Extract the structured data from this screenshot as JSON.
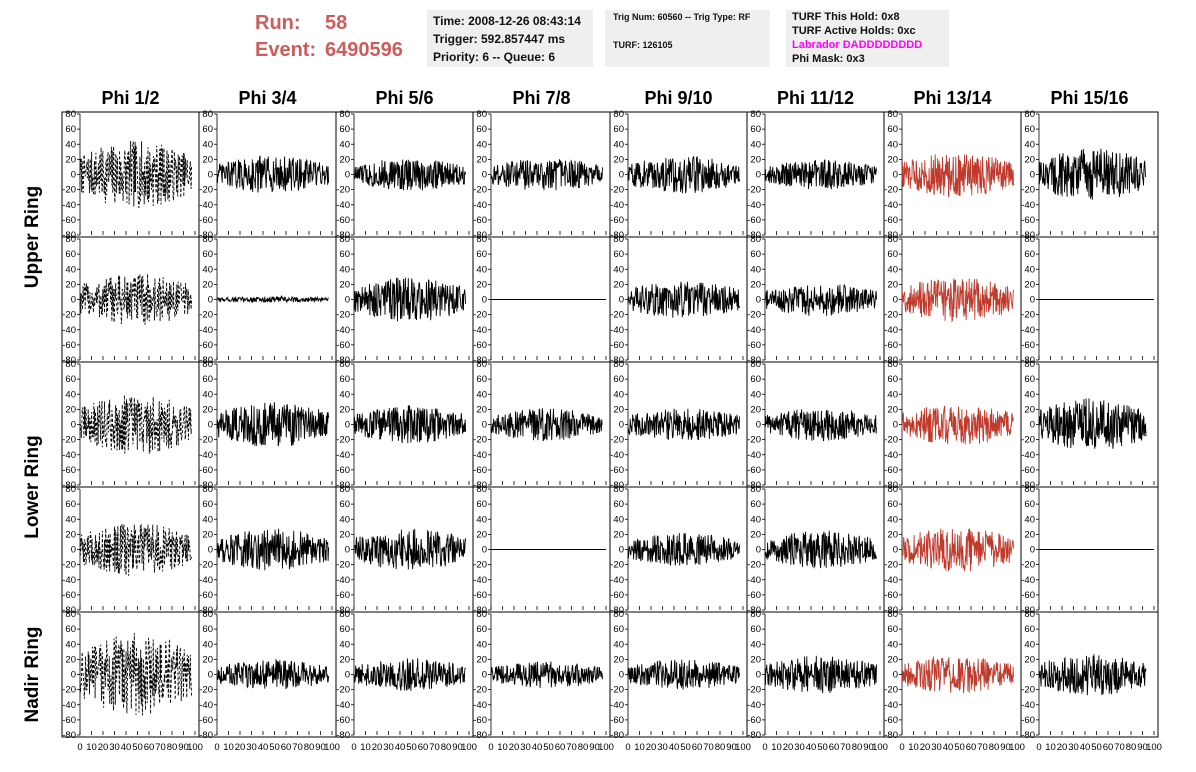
{
  "header": {
    "run_label": "Run:",
    "run_value": "58",
    "event_label": "Event:",
    "event_value": "6490596",
    "accent_color": "#cd5c5c"
  },
  "time_box": {
    "time": "Time: 2008-12-26 08:43:14",
    "trigger": "Trigger: 592.857447 ms",
    "priority": "Priority: 6 -- Queue: 6"
  },
  "trig_box": {
    "trig": "Trig Num: 60560 -- Trig Type: RF",
    "turf": "TURF: 126105"
  },
  "turf_box": {
    "this_hold": "TURF This Hold: 0x8",
    "active_holds": "TURF Active Holds: 0xc",
    "labrador": "Labrador DADDDDDDDD",
    "labrador_color": "#ff00ff",
    "phi_mask": "Phi Mask: 0x3"
  },
  "chart_data": {
    "type": "line",
    "columns": [
      "Phi 1/2",
      "Phi 3/4",
      "Phi 5/6",
      "Phi 7/8",
      "Phi 9/10",
      "Phi 11/12",
      "Phi 13/14",
      "Phi 15/16"
    ],
    "ring_labels": [
      {
        "label": "Upper Ring",
        "rows": [
          0,
          1
        ]
      },
      {
        "label": "Lower Ring",
        "rows": [
          2,
          3
        ]
      },
      {
        "label": "Nadir Ring",
        "rows": [
          4
        ]
      }
    ],
    "xlim": [
      0,
      100
    ],
    "ylim": [
      -80,
      80
    ],
    "x_ticks": [
      0,
      10,
      20,
      30,
      40,
      50,
      60,
      70,
      80,
      90,
      100
    ],
    "y_ticks": [
      -80,
      -60,
      -40,
      -20,
      0,
      20,
      40,
      60,
      80
    ],
    "trace_color": "#000000",
    "masked_color": "#c0392b",
    "masked_column": 6,
    "dashed_column": 0,
    "panels": [
      {
        "row": 0,
        "col": 0,
        "amp": 45,
        "flat": false
      },
      {
        "row": 0,
        "col": 1,
        "amp": 25,
        "flat": false
      },
      {
        "row": 0,
        "col": 2,
        "amp": 22,
        "flat": false
      },
      {
        "row": 0,
        "col": 3,
        "amp": 22,
        "flat": false
      },
      {
        "row": 0,
        "col": 4,
        "amp": 25,
        "flat": false
      },
      {
        "row": 0,
        "col": 5,
        "amp": 20,
        "flat": false
      },
      {
        "row": 0,
        "col": 6,
        "amp": 30,
        "flat": false
      },
      {
        "row": 0,
        "col": 7,
        "amp": 35,
        "flat": false
      },
      {
        "row": 1,
        "col": 0,
        "amp": 35,
        "flat": false
      },
      {
        "row": 1,
        "col": 1,
        "amp": 4,
        "flat": false
      },
      {
        "row": 1,
        "col": 2,
        "amp": 30,
        "flat": false
      },
      {
        "row": 1,
        "col": 3,
        "amp": 0,
        "flat": true
      },
      {
        "row": 1,
        "col": 4,
        "amp": 25,
        "flat": false
      },
      {
        "row": 1,
        "col": 5,
        "amp": 22,
        "flat": false
      },
      {
        "row": 1,
        "col": 6,
        "amp": 30,
        "flat": false
      },
      {
        "row": 1,
        "col": 7,
        "amp": 0,
        "flat": true
      },
      {
        "row": 2,
        "col": 0,
        "amp": 40,
        "flat": false
      },
      {
        "row": 2,
        "col": 1,
        "amp": 30,
        "flat": false
      },
      {
        "row": 2,
        "col": 2,
        "amp": 25,
        "flat": false
      },
      {
        "row": 2,
        "col": 3,
        "amp": 22,
        "flat": false
      },
      {
        "row": 2,
        "col": 4,
        "amp": 22,
        "flat": false
      },
      {
        "row": 2,
        "col": 5,
        "amp": 22,
        "flat": false
      },
      {
        "row": 2,
        "col": 6,
        "amp": 28,
        "flat": false
      },
      {
        "row": 2,
        "col": 7,
        "amp": 35,
        "flat": false
      },
      {
        "row": 3,
        "col": 0,
        "amp": 35,
        "flat": false
      },
      {
        "row": 3,
        "col": 1,
        "amp": 28,
        "flat": false
      },
      {
        "row": 3,
        "col": 2,
        "amp": 28,
        "flat": false
      },
      {
        "row": 3,
        "col": 3,
        "amp": 0,
        "flat": true
      },
      {
        "row": 3,
        "col": 4,
        "amp": 22,
        "flat": false
      },
      {
        "row": 3,
        "col": 5,
        "amp": 25,
        "flat": false
      },
      {
        "row": 3,
        "col": 6,
        "amp": 30,
        "flat": false
      },
      {
        "row": 3,
        "col": 7,
        "amp": 0,
        "flat": true
      },
      {
        "row": 4,
        "col": 0,
        "amp": 55,
        "flat": false
      },
      {
        "row": 4,
        "col": 1,
        "amp": 20,
        "flat": false
      },
      {
        "row": 4,
        "col": 2,
        "amp": 22,
        "flat": false
      },
      {
        "row": 4,
        "col": 3,
        "amp": 18,
        "flat": false
      },
      {
        "row": 4,
        "col": 4,
        "amp": 20,
        "flat": false
      },
      {
        "row": 4,
        "col": 5,
        "amp": 25,
        "flat": false
      },
      {
        "row": 4,
        "col": 6,
        "amp": 25,
        "flat": false
      },
      {
        "row": 4,
        "col": 7,
        "amp": 28,
        "flat": false
      }
    ]
  }
}
